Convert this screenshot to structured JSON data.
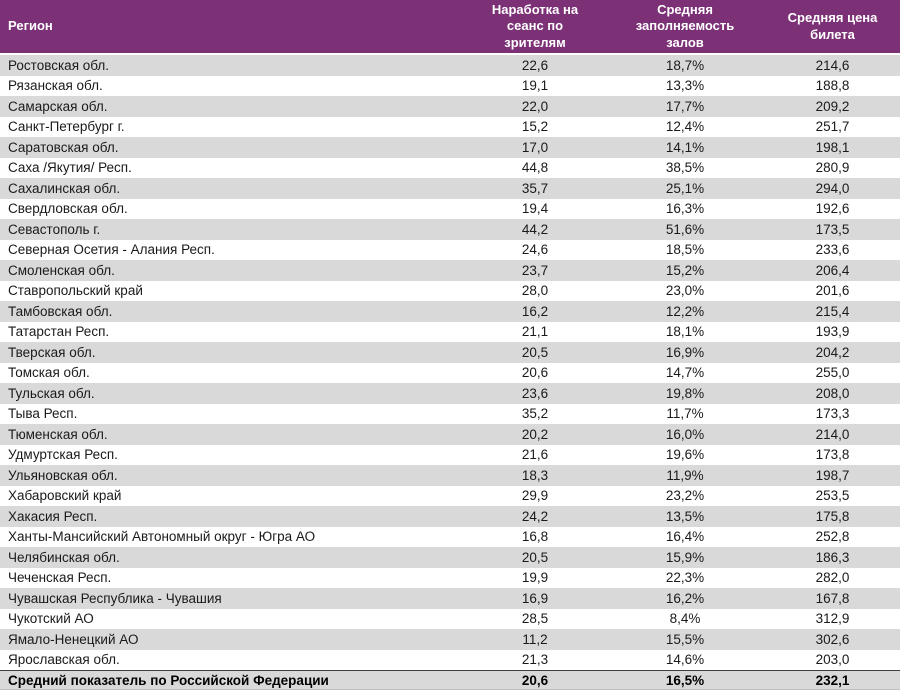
{
  "colors": {
    "header_bg": "#7C3177",
    "header_text": "#ffffff",
    "stripe_bg": "#D9D9D9",
    "row_bg": "#ffffff",
    "body_text": "#1a1a1a",
    "footer_rule": "#3f3f3f"
  },
  "table": {
    "columns": [
      {
        "key": "region",
        "label": "Регион"
      },
      {
        "key": "viewers",
        "label": "Наработка на\nсеанс по\nзрителям"
      },
      {
        "key": "occupancy",
        "label": "Средняя\nзаполняемость\nзалов"
      },
      {
        "key": "price",
        "label": "Средняя цена\nбилета"
      }
    ],
    "rows": [
      {
        "region": "Ростовская обл.",
        "viewers": "22,6",
        "occupancy": "18,7%",
        "price": "214,6"
      },
      {
        "region": "Рязанская обл.",
        "viewers": "19,1",
        "occupancy": "13,3%",
        "price": "188,8"
      },
      {
        "region": "Самарская обл.",
        "viewers": "22,0",
        "occupancy": "17,7%",
        "price": "209,2"
      },
      {
        "region": "Санкт-Петербург г.",
        "viewers": "15,2",
        "occupancy": "12,4%",
        "price": "251,7"
      },
      {
        "region": "Саратовская обл.",
        "viewers": "17,0",
        "occupancy": "14,1%",
        "price": "198,1"
      },
      {
        "region": "Саха /Якутия/ Респ.",
        "viewers": "44,8",
        "occupancy": "38,5%",
        "price": "280,9"
      },
      {
        "region": "Сахалинская обл.",
        "viewers": "35,7",
        "occupancy": "25,1%",
        "price": "294,0"
      },
      {
        "region": "Свердловская обл.",
        "viewers": "19,4",
        "occupancy": "16,3%",
        "price": "192,6"
      },
      {
        "region": "Севастополь г.",
        "viewers": "44,2",
        "occupancy": "51,6%",
        "price": "173,5"
      },
      {
        "region": "Северная Осетия - Алания Респ.",
        "viewers": "24,6",
        "occupancy": "18,5%",
        "price": "233,6"
      },
      {
        "region": "Смоленская обл.",
        "viewers": "23,7",
        "occupancy": "15,2%",
        "price": "206,4"
      },
      {
        "region": "Ставропольский край",
        "viewers": "28,0",
        "occupancy": "23,0%",
        "price": "201,6"
      },
      {
        "region": "Тамбовская обл.",
        "viewers": "16,2",
        "occupancy": "12,2%",
        "price": "215,4"
      },
      {
        "region": "Татарстан Респ.",
        "viewers": "21,1",
        "occupancy": "18,1%",
        "price": "193,9"
      },
      {
        "region": "Тверская обл.",
        "viewers": "20,5",
        "occupancy": "16,9%",
        "price": "204,2"
      },
      {
        "region": "Томская обл.",
        "viewers": "20,6",
        "occupancy": "14,7%",
        "price": "255,0"
      },
      {
        "region": "Тульская обл.",
        "viewers": "23,6",
        "occupancy": "19,8%",
        "price": "208,0"
      },
      {
        "region": "Тыва Респ.",
        "viewers": "35,2",
        "occupancy": "11,7%",
        "price": "173,3"
      },
      {
        "region": "Тюменская обл.",
        "viewers": "20,2",
        "occupancy": "16,0%",
        "price": "214,0"
      },
      {
        "region": "Удмуртская Респ.",
        "viewers": "21,6",
        "occupancy": "19,6%",
        "price": "173,8"
      },
      {
        "region": "Ульяновская обл.",
        "viewers": "18,3",
        "occupancy": "11,9%",
        "price": "198,7"
      },
      {
        "region": "Хабаровский край",
        "viewers": "29,9",
        "occupancy": "23,2%",
        "price": "253,5"
      },
      {
        "region": "Хакасия Респ.",
        "viewers": "24,2",
        "occupancy": "13,5%",
        "price": "175,8"
      },
      {
        "region": "Ханты-Мансийский Автономный округ - Югра АО",
        "viewers": "16,8",
        "occupancy": "16,4%",
        "price": "252,8"
      },
      {
        "region": "Челябинская обл.",
        "viewers": "20,5",
        "occupancy": "15,9%",
        "price": "186,3"
      },
      {
        "region": "Чеченская Респ.",
        "viewers": "19,9",
        "occupancy": "22,3%",
        "price": "282,0"
      },
      {
        "region": "Чувашская Республика - Чувашия",
        "viewers": "16,9",
        "occupancy": "16,2%",
        "price": "167,8"
      },
      {
        "region": "Чукотский АО",
        "viewers": "28,5",
        "occupancy": "8,4%",
        "price": "312,9"
      },
      {
        "region": "Ямало-Ненецкий АО",
        "viewers": "11,2",
        "occupancy": "15,5%",
        "price": "302,6"
      },
      {
        "region": "Ярославская обл.",
        "viewers": "21,3",
        "occupancy": "14,6%",
        "price": "203,0"
      }
    ],
    "footer": {
      "region": "Средний показатель по Российской Федерации",
      "viewers": "20,6",
      "occupancy": "16,5%",
      "price": "232,1"
    }
  }
}
